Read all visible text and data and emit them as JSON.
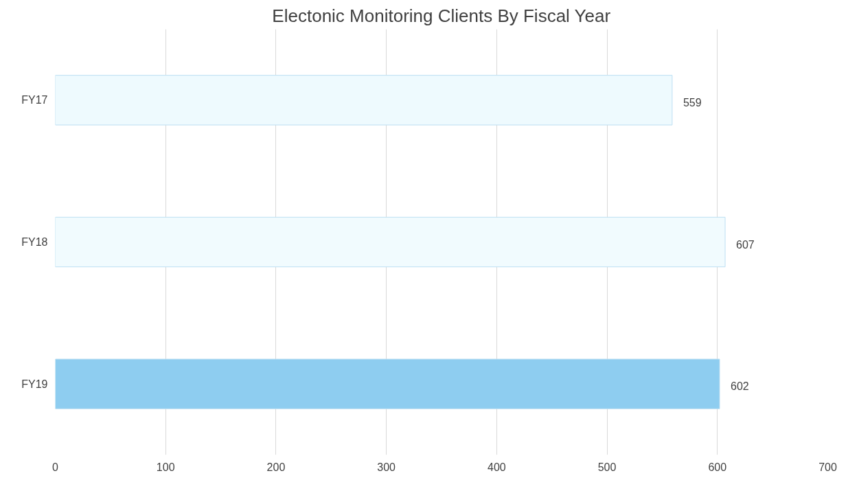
{
  "chart_data": {
    "type": "bar",
    "orientation": "horizontal",
    "title": "Electonic Monitoring Clients By Fiscal Year",
    "categories": [
      "FY17",
      "FY18",
      "FY19"
    ],
    "values": [
      559,
      607,
      602
    ],
    "colors": [
      "#eefafe",
      "#f1fbfe",
      "#8ecdf0"
    ],
    "xlim": [
      0,
      700
    ],
    "xticks": [
      0,
      100,
      200,
      300,
      400,
      500,
      600,
      700
    ],
    "grid": "x",
    "data_labels": true
  }
}
